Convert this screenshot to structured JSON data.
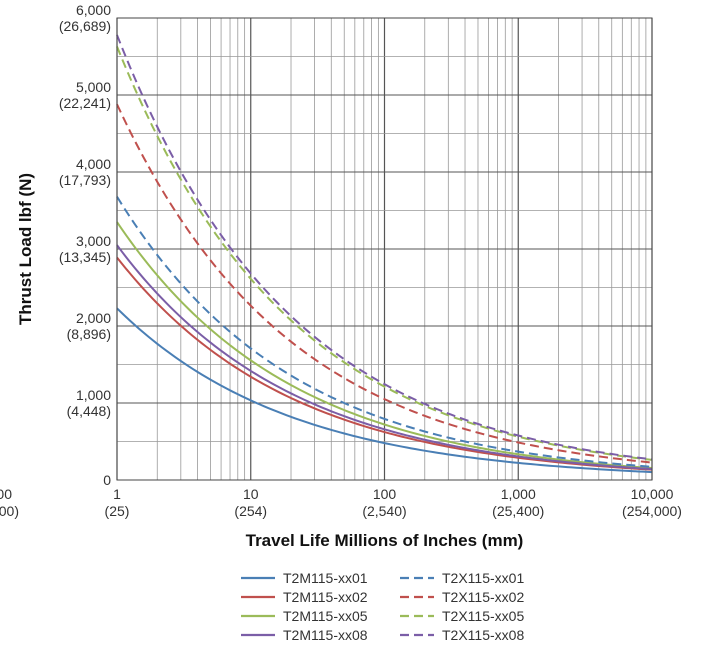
{
  "chart_data": {
    "type": "line",
    "title": "",
    "xlabel": "Travel Life Millions of Inches (mm)",
    "ylabel": "Thrust Load lbf (N)",
    "x_scale": "log",
    "xlim": [
      1,
      10000
    ],
    "ylim": [
      0,
      6000
    ],
    "grid": true,
    "legend_position": "bottom",
    "x_ticks": [
      {
        "value": 1,
        "label": "1",
        "sublabel": "(25)"
      },
      {
        "value": 10,
        "label": "10",
        "sublabel": "(254)"
      },
      {
        "value": 100,
        "label": "100",
        "sublabel": "(2,540)"
      },
      {
        "value": 1000,
        "label": "1,000",
        "sublabel": "(25,400)"
      },
      {
        "value": 10000,
        "label": "10,000",
        "sublabel": "(254,000)"
      }
    ],
    "x_ticks_overflow": {
      "label": "00",
      "sublabel": "00)"
    },
    "y_ticks": [
      {
        "value": 0,
        "label": "0",
        "sublabel": ""
      },
      {
        "value": 1000,
        "label": "1,000",
        "sublabel": "(4,448)"
      },
      {
        "value": 2000,
        "label": "2,000",
        "sublabel": "(8,896)"
      },
      {
        "value": 3000,
        "label": "3,000",
        "sublabel": "(13,345)"
      },
      {
        "value": 4000,
        "label": "4,000",
        "sublabel": "(17,793)"
      },
      {
        "value": 5000,
        "label": "5,000",
        "sublabel": "(22,241)"
      },
      {
        "value": 6000,
        "label": "6,000",
        "sublabel": "(26,689)"
      }
    ],
    "series": [
      {
        "name": "T2M115-xx01",
        "color": "#4a7fb5",
        "dash": "solid",
        "x": [
          1,
          10000
        ],
        "y": [
          2230,
          103
        ]
      },
      {
        "name": "T2M115-xx02",
        "color": "#c0504d",
        "dash": "solid",
        "x": [
          1,
          10000
        ],
        "y": [
          2890,
          134
        ]
      },
      {
        "name": "T2M115-xx05",
        "color": "#9bbb59",
        "dash": "solid",
        "x": [
          1,
          10000
        ],
        "y": [
          3350,
          155
        ]
      },
      {
        "name": "T2M115-xx08",
        "color": "#7b5ea7",
        "dash": "solid",
        "x": [
          1,
          10000
        ],
        "y": [
          3050,
          142
        ]
      },
      {
        "name": "T2X115-xx01",
        "color": "#4a7fb5",
        "dash": "dashed",
        "x": [
          1,
          10000
        ],
        "y": [
          3680,
          171
        ]
      },
      {
        "name": "T2X115-xx02",
        "color": "#c0504d",
        "dash": "dashed",
        "x": [
          1,
          10000
        ],
        "y": [
          4880,
          226
        ]
      },
      {
        "name": "T2X115-xx05",
        "color": "#9bbb59",
        "dash": "dashed",
        "x": [
          1,
          10000
        ],
        "y": [
          5630,
          261
        ]
      },
      {
        "name": "T2X115-xx08",
        "color": "#7b5ea7",
        "dash": "dashed",
        "x": [
          1,
          10000
        ],
        "y": [
          5780,
          268
        ]
      }
    ]
  }
}
